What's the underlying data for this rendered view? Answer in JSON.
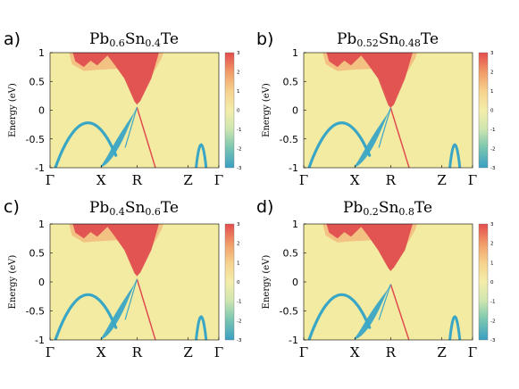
{
  "figure": {
    "panels": [
      {
        "letter": "a)",
        "title": {
          "pb": "Pb",
          "pb_sub": "0.6",
          "sn": "Sn",
          "sn_sub": "0.4",
          "te": "Te"
        }
      },
      {
        "letter": "b)",
        "title": {
          "pb": "Pb",
          "pb_sub": "0.52",
          "sn": "Sn",
          "sn_sub": "0.48",
          "te": "Te"
        }
      },
      {
        "letter": "c)",
        "title": {
          "pb": "Pb",
          "pb_sub": "0.4",
          "sn": "Sn",
          "sn_sub": "0.6",
          "te": "Te"
        }
      },
      {
        "letter": "d)",
        "title": {
          "pb": "Pb",
          "pb_sub": "0.2",
          "sn": "Sn",
          "sn_sub": "0.8",
          "te": "Te"
        }
      }
    ],
    "colors": {
      "background": "#f3eba2",
      "positive": "#e04b4e",
      "negative": "#3aa6c6",
      "colorbar": [
        "#3a9fc4",
        "#7cc7b0",
        "#cfe6b0",
        "#f4edaa",
        "#f6d38f",
        "#f2a06a",
        "#e44c4c"
      ]
    }
  },
  "chart_data": [
    {
      "type": "heatmap",
      "title": "Pb0.6Sn0.4Te",
      "xlabel": "",
      "ylabel": "Energy (eV)",
      "x_ticks": [
        "Γ",
        "X",
        "R",
        "Z",
        "Γ"
      ],
      "y_ticks": [
        "1",
        "0.5",
        "0",
        "-0.5",
        "-1"
      ],
      "ylim": [
        -1,
        1
      ],
      "colorbar": {
        "range": [
          -3,
          3
        ],
        "ticks": [
          "3",
          "2",
          "1",
          "0",
          "-1",
          "-2",
          "-3"
        ]
      },
      "gap_at_R_eV": [
        0.05,
        0.1
      ]
    },
    {
      "type": "heatmap",
      "title": "Pb0.52Sn0.48Te",
      "xlabel": "",
      "ylabel": "Energy (eV)",
      "x_ticks": [
        "Γ",
        "X",
        "R",
        "Z",
        "Γ"
      ],
      "y_ticks": [
        "1",
        "0.5",
        "0",
        "-0.5",
        "-1"
      ],
      "ylim": [
        -1,
        1
      ],
      "colorbar": {
        "range": [
          -3,
          3
        ],
        "ticks": [
          "3",
          "2",
          "1",
          "0",
          "-1",
          "-2",
          "-3"
        ]
      },
      "gap_at_R_eV": [
        0.04,
        0.04
      ]
    },
    {
      "type": "heatmap",
      "title": "Pb0.4Sn0.6Te",
      "xlabel": "",
      "ylabel": "Energy (eV)",
      "x_ticks": [
        "Γ",
        "X",
        "R",
        "Z",
        "Γ"
      ],
      "y_ticks": [
        "1",
        "0.5",
        "0",
        "-0.5",
        "-1"
      ],
      "ylim": [
        -1,
        1
      ],
      "colorbar": {
        "range": [
          -3,
          3
        ],
        "ticks": [
          "3",
          "2",
          "1",
          "0",
          "-1",
          "-2",
          "-3"
        ]
      },
      "gap_at_R_eV": [
        0.05,
        0.1
      ]
    },
    {
      "type": "heatmap",
      "title": "Pb0.2Sn0.8Te",
      "xlabel": "",
      "ylabel": "Energy (eV)",
      "x_ticks": [
        "Γ",
        "X",
        "R",
        "Z",
        "Γ"
      ],
      "y_ticks": [
        "1",
        "0.5",
        "0",
        "-0.5",
        "-1"
      ],
      "ylim": [
        -1,
        1
      ],
      "colorbar": {
        "range": [
          -3,
          3
        ],
        "ticks": [
          "3",
          "2",
          "1",
          "0",
          "-1",
          "-2",
          "-3"
        ]
      },
      "gap_at_R_eV": [
        -0.04,
        0.19
      ]
    }
  ]
}
